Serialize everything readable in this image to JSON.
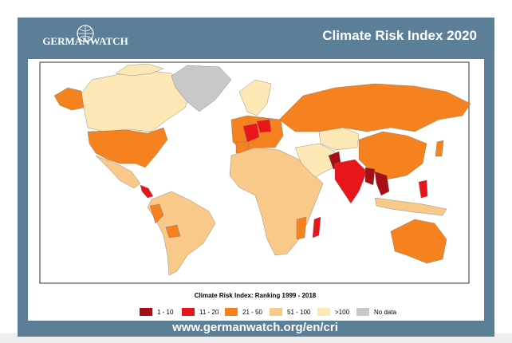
{
  "header": {
    "logo": "GERMANWATCH",
    "title": "Climate Risk Index 2020"
  },
  "legend": {
    "title": "Climate Risk Index: Ranking 1999 - 2018",
    "items": [
      {
        "label": "1 - 10",
        "color": "#a50f15"
      },
      {
        "label": "11 - 20",
        "color": "#e8151b"
      },
      {
        "label": "21 - 50",
        "color": "#f5821f"
      },
      {
        "label": "51 - 100",
        "color": "#f9c98a"
      },
      {
        "label": ">100",
        "color": "#fde8b5"
      },
      {
        "label": "No data",
        "color": "#c8c8c8"
      }
    ]
  },
  "footer": {
    "url": "www.germanwatch.org/en/cri"
  }
}
